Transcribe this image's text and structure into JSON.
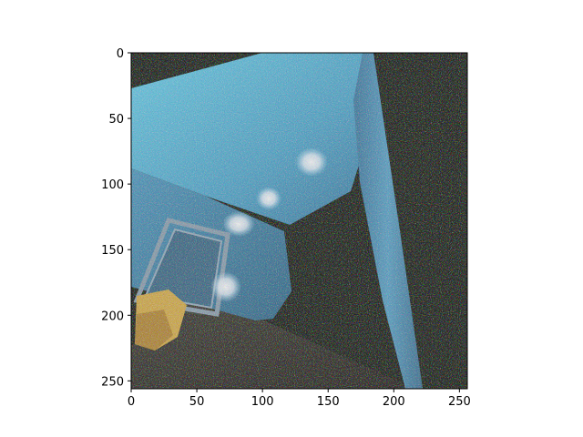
{
  "figure": {
    "background": "#ffffff"
  },
  "image_axes": {
    "x_range": [
      0,
      256
    ],
    "y_range": [
      0,
      256
    ],
    "y_inverted": true,
    "x_ticks": [
      {
        "value": 0,
        "label": "0"
      },
      {
        "value": 50,
        "label": "50"
      },
      {
        "value": 100,
        "label": "100"
      },
      {
        "value": 150,
        "label": "150"
      },
      {
        "value": 200,
        "label": "200"
      },
      {
        "value": 250,
        "label": "250"
      }
    ],
    "y_ticks": [
      {
        "value": 0,
        "label": "0"
      },
      {
        "value": 50,
        "label": "50"
      },
      {
        "value": 100,
        "label": "100"
      },
      {
        "value": 150,
        "label": "150"
      },
      {
        "value": 200,
        "label": "200"
      },
      {
        "value": 250,
        "label": "250"
      }
    ]
  },
  "scene": {
    "description_colors": {
      "wall_light_blue": "#5ec8e8",
      "wall_mid_blue": "#3e86a8",
      "pillar_blue": "#4a90b8",
      "dark_background": "#121a10",
      "floor_dark": "#2e2a22",
      "door_frame": "#7f95a4",
      "yellow_object": "#d8b048",
      "light_spot": "#f4f8ff"
    }
  }
}
